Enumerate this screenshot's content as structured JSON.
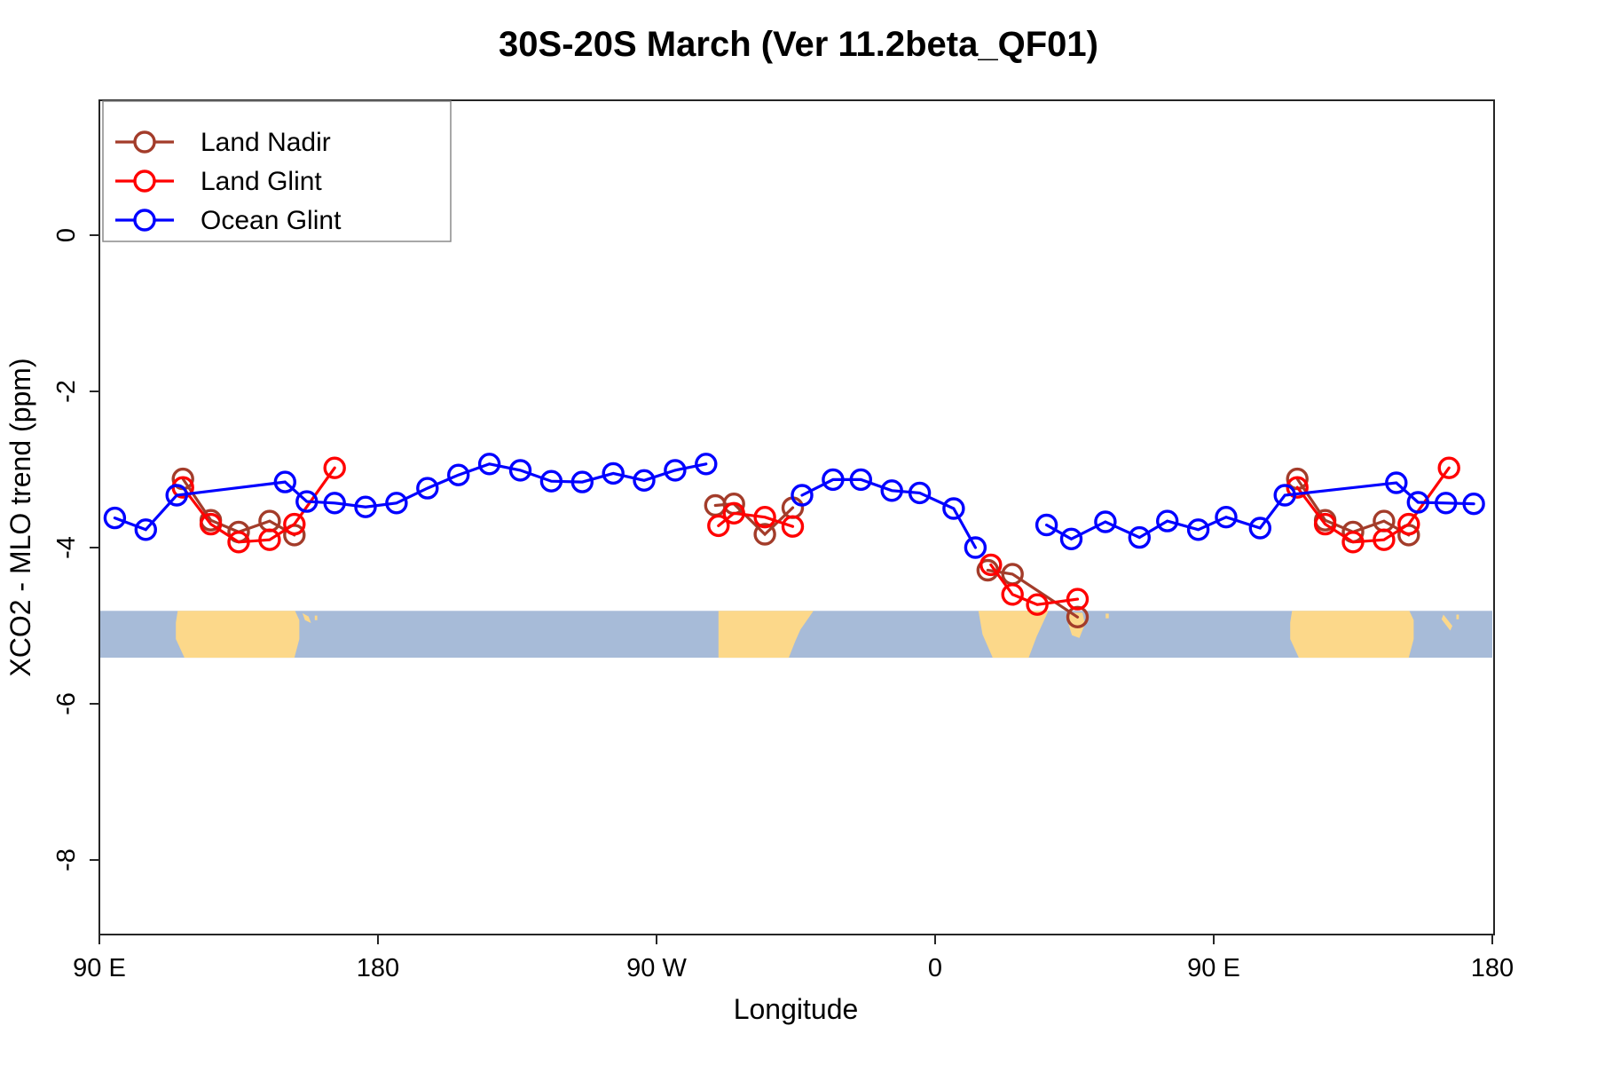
{
  "title": "30S-20S March (Ver 11.2beta_QF01)",
  "axis": {
    "x_label": "Longitude",
    "y_label": "XCO2 - MLO trend (ppm)",
    "x_range": [
      90,
      540
    ],
    "y_range": [
      -8.95,
      1.73
    ],
    "x_ticks": [
      {
        "value": 90,
        "label": "90 E"
      },
      {
        "value": 180,
        "label": "180"
      },
      {
        "value": 270,
        "label": "90 W"
      },
      {
        "value": 360,
        "label": "0"
      },
      {
        "value": 450,
        "label": "90 E"
      },
      {
        "value": 540,
        "label": "180"
      }
    ],
    "y_ticks": [
      {
        "value": 0,
        "label": "0"
      },
      {
        "value": -2,
        "label": "-2"
      },
      {
        "value": -4,
        "label": "-4"
      },
      {
        "value": -6,
        "label": "-6"
      },
      {
        "value": -8,
        "label": "-8"
      }
    ]
  },
  "legend": {
    "items": [
      {
        "label": "Land Nadir",
        "color": "#a33c2a"
      },
      {
        "label": "Land Glint",
        "color": "#ff0000"
      },
      {
        "label": "Ocean Glint",
        "color": "#0000ff"
      }
    ]
  },
  "chart_data": {
    "type": "line",
    "title": "30S-20S March (Ver 11.2beta_QF01)",
    "xlabel": "Longitude",
    "ylabel": "XCO2 - MLO trend (ppm)",
    "x_unit": "degrees of longitude, wrapped axis 90E -> 180 -> 90W -> 0 -> 90E -> 180 (90 to 540)",
    "marker": "open-circle",
    "series": [
      {
        "name": "Land Nadir",
        "color": "#a33c2a",
        "segments": [
          [
            [
              117,
              -3.12
            ],
            [
              126,
              -3.65
            ],
            [
              135,
              -3.8
            ],
            [
              145,
              -3.66
            ],
            [
              153,
              -3.84
            ]
          ],
          [
            [
              289,
              -3.46
            ],
            [
              295,
              -3.44
            ],
            [
              305,
              -3.83
            ],
            [
              314,
              -3.49
            ]
          ],
          [
            [
              377,
              -4.29
            ],
            [
              385,
              -4.34
            ],
            [
              406,
              -4.89
            ]
          ],
          [
            [
              477,
              -3.12
            ],
            [
              486,
              -3.65
            ],
            [
              495,
              -3.8
            ],
            [
              505,
              -3.66
            ],
            [
              513,
              -3.84
            ]
          ]
        ]
      },
      {
        "name": "Land Glint",
        "color": "#ff0000",
        "segments": [
          [
            [
              117,
              -3.23
            ],
            [
              126,
              -3.7
            ],
            [
              135,
              -3.93
            ],
            [
              145,
              -3.9
            ],
            [
              153,
              -3.7
            ],
            [
              166,
              -2.98
            ]
          ],
          [
            [
              290,
              -3.72
            ],
            [
              295,
              -3.56
            ],
            [
              305,
              -3.61
            ],
            [
              314,
              -3.73
            ]
          ],
          [
            [
              378,
              -4.22
            ],
            [
              385,
              -4.6
            ],
            [
              393,
              -4.73
            ],
            [
              406,
              -4.66
            ]
          ],
          [
            [
              477,
              -3.23
            ],
            [
              486,
              -3.7
            ],
            [
              495,
              -3.93
            ],
            [
              505,
              -3.9
            ],
            [
              513,
              -3.7
            ],
            [
              526,
              -2.98
            ]
          ]
        ]
      },
      {
        "name": "Ocean Glint",
        "color": "#0000ff",
        "segments": [
          [
            [
              95,
              -3.62
            ],
            [
              105,
              -3.77
            ],
            [
              115,
              -3.33
            ],
            [
              150,
              -3.16
            ],
            [
              157,
              -3.41
            ],
            [
              166,
              -3.43
            ],
            [
              176,
              -3.48
            ],
            [
              186,
              -3.43
            ],
            [
              196,
              -3.24
            ],
            [
              206,
              -3.07
            ],
            [
              216,
              -2.93
            ],
            [
              226,
              -3.01
            ],
            [
              236,
              -3.15
            ],
            [
              246,
              -3.16
            ],
            [
              256,
              -3.05
            ],
            [
              266,
              -3.14
            ],
            [
              276,
              -3.01
            ],
            [
              286,
              -2.93
            ]
          ],
          [
            [
              317,
              -3.33
            ],
            [
              327,
              -3.13
            ],
            [
              336,
              -3.13
            ],
            [
              346,
              -3.27
            ],
            [
              355,
              -3.3
            ],
            [
              366,
              -3.5
            ],
            [
              373,
              -4.0
            ]
          ],
          [
            [
              396,
              -3.71
            ],
            [
              404,
              -3.89
            ],
            [
              415,
              -3.67
            ],
            [
              426,
              -3.87
            ],
            [
              435,
              -3.66
            ],
            [
              445,
              -3.77
            ],
            [
              454,
              -3.61
            ],
            [
              465,
              -3.75
            ],
            [
              473,
              -3.33
            ],
            [
              509,
              -3.17
            ],
            [
              516,
              -3.42
            ],
            [
              525,
              -3.43
            ],
            [
              534,
              -3.44
            ]
          ]
        ]
      }
    ]
  },
  "map_strip": {
    "description": "30S-20S latitude band world map strip",
    "ocean_color": "#a7bbd8",
    "land_color": "#fcd88a",
    "top_ppm": -4.81,
    "bottom_ppm": -5.41,
    "patches": [
      {
        "name": "australia",
        "points": [
          [
            115.3,
            0
          ],
          [
            153.2,
            0
          ],
          [
            154.6,
            0.2
          ],
          [
            154.6,
            0.6
          ],
          [
            153,
            1
          ],
          [
            117.5,
            1
          ],
          [
            114.7,
            0.6
          ],
          [
            114.7,
            0.25
          ]
        ]
      },
      {
        "name": "coral-sea-islands",
        "points": [
          [
            155.6,
            0.05
          ],
          [
            157.6,
            0.12
          ],
          [
            158.4,
            0.26
          ],
          [
            156.4,
            0.2
          ]
        ]
      },
      {
        "name": "island-dot",
        "points": [
          [
            159.6,
            0.1
          ],
          [
            160.4,
            0.1
          ],
          [
            160.4,
            0.2
          ],
          [
            159.6,
            0.2
          ]
        ]
      },
      {
        "name": "south-america",
        "points": [
          [
            290,
            0
          ],
          [
            320.7,
            0
          ],
          [
            316.5,
            0.4
          ],
          [
            314.8,
            0.65
          ],
          [
            312.7,
            1
          ],
          [
            290,
            1
          ]
        ]
      },
      {
        "name": "africa",
        "points": [
          [
            374,
            0
          ],
          [
            396.6,
            0
          ],
          [
            392.8,
            0.55
          ],
          [
            390.2,
            1
          ],
          [
            378.6,
            1
          ],
          [
            375.3,
            0.5
          ]
        ]
      },
      {
        "name": "madagascar",
        "points": [
          [
            403.1,
            0.04
          ],
          [
            407.6,
            0.04
          ],
          [
            408.4,
            0.28
          ],
          [
            406.6,
            0.58
          ],
          [
            404.2,
            0.52
          ],
          [
            402.9,
            0.25
          ]
        ]
      },
      {
        "name": "mauritius",
        "points": [
          [
            415.1,
            0.06
          ],
          [
            416.1,
            0.06
          ],
          [
            416.1,
            0.16
          ],
          [
            415.1,
            0.16
          ]
        ]
      },
      {
        "name": "australia-repeat",
        "points": [
          [
            475.3,
            0
          ],
          [
            513.2,
            0
          ],
          [
            514.6,
            0.2
          ],
          [
            514.6,
            0.6
          ],
          [
            513,
            1
          ],
          [
            477.5,
            1
          ],
          [
            474.7,
            0.6
          ],
          [
            474.7,
            0.25
          ]
        ]
      },
      {
        "name": "new-caledonia",
        "points": [
          [
            524.2,
            0.08
          ],
          [
            527.1,
            0.32
          ],
          [
            526.4,
            0.42
          ],
          [
            523.6,
            0.18
          ]
        ]
      },
      {
        "name": "fiji-dot",
        "points": [
          [
            528.4,
            0.08
          ],
          [
            529.2,
            0.08
          ],
          [
            529.2,
            0.18
          ],
          [
            528.4,
            0.18
          ]
        ]
      }
    ]
  }
}
